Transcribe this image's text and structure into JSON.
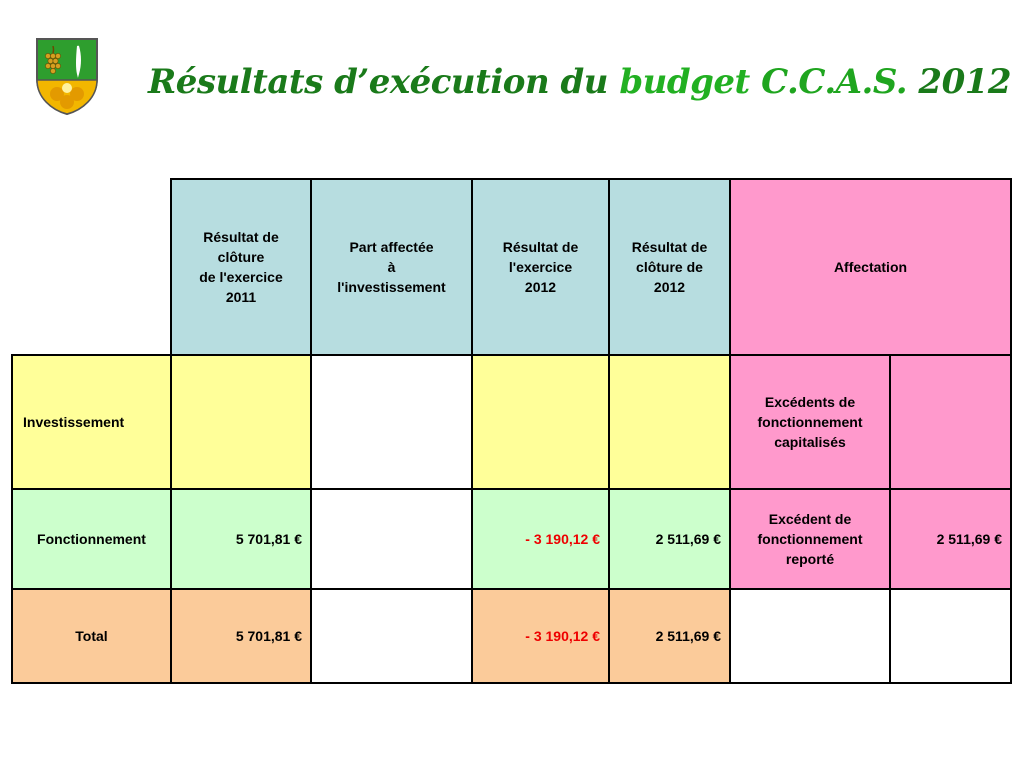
{
  "title": {
    "part1": "Résultats d’exécution du ",
    "part2": "budget",
    "part3": " C.C.A.S.",
    "part4": " 2012"
  },
  "logo": {
    "icon": "coat-of-arms-icon"
  },
  "colors": {
    "header_blue": "#b7dde0",
    "header_pink": "#ff99cc",
    "investissement": "#ffff99",
    "fonctionnement": "#ccffcc",
    "total": "#fbcb9a",
    "negative": "#ee0000",
    "title_green": "#1a7a1a"
  },
  "table": {
    "headers": {
      "col1": [
        "Résultat de",
        "clôture",
        "de l'exercice",
        "2011"
      ],
      "col2": [
        "Part affectée",
        "à",
        "l'investissement"
      ],
      "col3": [
        "Résultat de",
        "l'exercice",
        "2012"
      ],
      "col4": [
        "Résultat de",
        "clôture de",
        "2012"
      ],
      "col5": "Affectation"
    },
    "rows": {
      "investissement": {
        "label": "Investissement",
        "col1": "",
        "col2": "",
        "col3": "",
        "col4": "",
        "affectation_label": [
          "Excédents de",
          "fonctionnement",
          "capitalisés"
        ],
        "affectation_value": ""
      },
      "fonctionnement": {
        "label": "Fonctionnement",
        "col1": "5 701,81 €",
        "col2": "",
        "col3": "- 3 190,12 €",
        "col4": "2 511,69 €",
        "affectation_label": [
          "Excédent de",
          "fonctionnement",
          "reporté"
        ],
        "affectation_value": "2 511,69 €"
      },
      "total": {
        "label": "Total",
        "col1": "5 701,81 €",
        "col2": "",
        "col3": "- 3 190,12 €",
        "col4": "2 511,69 €",
        "affectation_label": "",
        "affectation_value": ""
      }
    }
  }
}
